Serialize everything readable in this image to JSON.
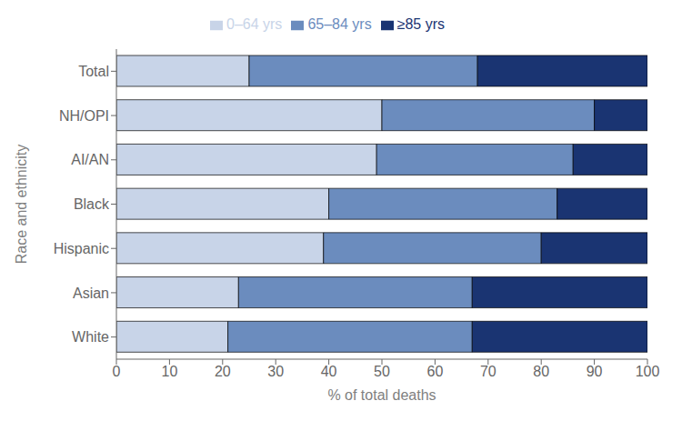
{
  "chart_data": {
    "type": "bar",
    "orientation": "horizontal",
    "stacked": true,
    "categories": [
      "Total",
      "NH/OPI",
      "AI/AN",
      "Black",
      "Hispanic",
      "Asian",
      "White"
    ],
    "series": [
      {
        "name": "0–64 yrs",
        "color": "#c8d4e8",
        "values": [
          25,
          50,
          49,
          40,
          39,
          23,
          21
        ]
      },
      {
        "name": "65–84 yrs",
        "color": "#6b8cbe",
        "values": [
          43,
          40,
          37,
          43,
          41,
          44,
          46
        ]
      },
      {
        "name": "≥85 yrs",
        "color": "#1a3472",
        "values": [
          32,
          10,
          14,
          17,
          20,
          33,
          33
        ]
      }
    ],
    "xlabel": "% of total deaths",
    "ylabel": "Race and ethnicity",
    "xlim": [
      0,
      100
    ],
    "xticks": [
      0,
      10,
      20,
      30,
      40,
      50,
      60,
      70,
      80,
      90,
      100
    ],
    "grid": false,
    "legend": "top"
  }
}
